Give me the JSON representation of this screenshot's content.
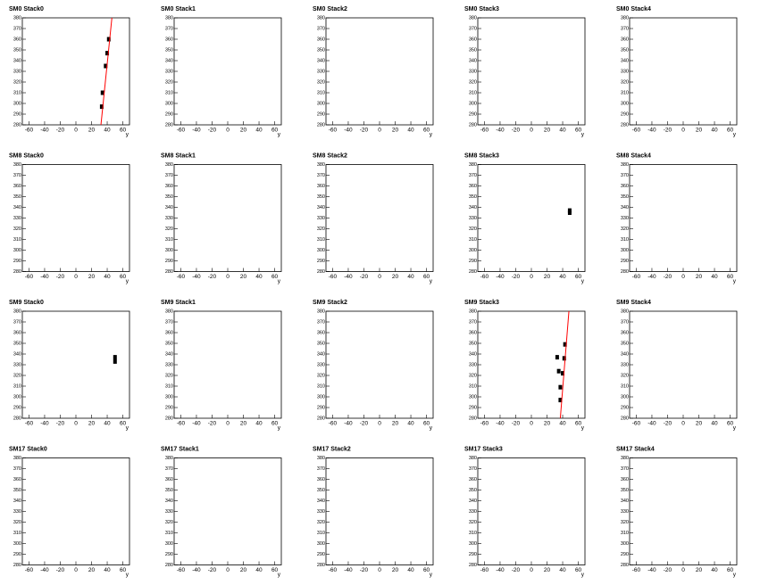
{
  "chart_data": [
    {
      "type": "scatter",
      "title": "SM0 Stack0",
      "xlabel": "y",
      "xlim": [
        -68.5,
        68.5
      ],
      "ylim": [
        280,
        380
      ],
      "xticks": [
        -60,
        -40,
        -20,
        0,
        20,
        40,
        60
      ],
      "yticks": [
        280,
        290,
        300,
        310,
        320,
        330,
        340,
        350,
        360,
        370,
        380
      ],
      "points": {
        "x": [
          33,
          34,
          38,
          40,
          42
        ],
        "y": [
          297,
          310,
          335,
          347,
          360
        ]
      },
      "fit": {
        "x": [
          32,
          46
        ],
        "y": [
          280,
          380
        ],
        "color": "#ff0000"
      }
    },
    {
      "type": "scatter",
      "title": "SM0 Stack1",
      "xlabel": "y",
      "xlim": [
        -68.5,
        68.5
      ],
      "ylim": [
        280,
        380
      ],
      "xticks": [
        -60,
        -40,
        -20,
        0,
        20,
        40,
        60
      ],
      "yticks": [
        280,
        290,
        300,
        310,
        320,
        330,
        340,
        350,
        360,
        370,
        380
      ]
    },
    {
      "type": "scatter",
      "title": "SM0 Stack2",
      "xlabel": "y",
      "xlim": [
        -68.5,
        68.5
      ],
      "ylim": [
        280,
        380
      ],
      "xticks": [
        -60,
        -40,
        -20,
        0,
        20,
        40,
        60
      ],
      "yticks": [
        280,
        290,
        300,
        310,
        320,
        330,
        340,
        350,
        360,
        370,
        380
      ]
    },
    {
      "type": "scatter",
      "title": "SM0 Stack3",
      "xlabel": "y",
      "xlim": [
        -68.5,
        68.5
      ],
      "ylim": [
        280,
        380
      ],
      "xticks": [
        -60,
        -40,
        -20,
        0,
        20,
        40,
        60
      ],
      "yticks": [
        280,
        290,
        300,
        310,
        320,
        330,
        340,
        350,
        360,
        370,
        380
      ]
    },
    {
      "type": "scatter",
      "title": "SM0 Stack4",
      "xlabel": "y",
      "xlim": [
        -68.5,
        68.5
      ],
      "ylim": [
        280,
        380
      ],
      "xticks": [
        -60,
        -40,
        -20,
        0,
        20,
        40,
        60
      ],
      "yticks": [
        280,
        290,
        300,
        310,
        320,
        330,
        340,
        350,
        360,
        370,
        380
      ]
    },
    {
      "type": "scatter",
      "title": "SM8 Stack0",
      "xlabel": "y",
      "xlim": [
        -68.5,
        68.5
      ],
      "ylim": [
        280,
        380
      ],
      "xticks": [
        -60,
        -40,
        -20,
        0,
        20,
        40,
        60
      ],
      "yticks": [
        280,
        290,
        300,
        310,
        320,
        330,
        340,
        350,
        360,
        370,
        380
      ]
    },
    {
      "type": "scatter",
      "title": "SM8 Stack1",
      "xlabel": "y",
      "xlim": [
        -68.5,
        68.5
      ],
      "ylim": [
        280,
        380
      ],
      "xticks": [
        -60,
        -40,
        -20,
        0,
        20,
        40,
        60
      ],
      "yticks": [
        280,
        290,
        300,
        310,
        320,
        330,
        340,
        350,
        360,
        370,
        380
      ]
    },
    {
      "type": "scatter",
      "title": "SM8 Stack2",
      "xlabel": "y",
      "xlim": [
        -68.5,
        68.5
      ],
      "ylim": [
        280,
        380
      ],
      "xticks": [
        -60,
        -40,
        -20,
        0,
        20,
        40,
        60
      ],
      "yticks": [
        280,
        290,
        300,
        310,
        320,
        330,
        340,
        350,
        360,
        370,
        380
      ]
    },
    {
      "type": "scatter",
      "title": "SM8 Stack3",
      "xlabel": "y",
      "xlim": [
        -68.5,
        68.5
      ],
      "ylim": [
        280,
        380
      ],
      "xticks": [
        -60,
        -40,
        -20,
        0,
        20,
        40,
        60
      ],
      "yticks": [
        280,
        290,
        300,
        310,
        320,
        330,
        340,
        350,
        360,
        370,
        380
      ],
      "points": {
        "x": [
          49,
          49
        ],
        "y": [
          337,
          335
        ]
      }
    },
    {
      "type": "scatter",
      "title": "SM8 Stack4",
      "xlabel": "y",
      "xlim": [
        -68.5,
        68.5
      ],
      "ylim": [
        280,
        380
      ],
      "xticks": [
        -60,
        -40,
        -20,
        0,
        20,
        40,
        60
      ],
      "yticks": [
        280,
        290,
        300,
        310,
        320,
        330,
        340,
        350,
        360,
        370,
        380
      ]
    },
    {
      "type": "scatter",
      "title": "SM9 Stack0",
      "xlabel": "y",
      "xlim": [
        -68.5,
        68.5
      ],
      "ylim": [
        280,
        380
      ],
      "xticks": [
        -60,
        -40,
        -20,
        0,
        20,
        40,
        60
      ],
      "yticks": [
        280,
        290,
        300,
        310,
        320,
        330,
        340,
        350,
        360,
        370,
        380
      ],
      "points": {
        "x": [
          50,
          50
        ],
        "y": [
          337,
          333
        ]
      }
    },
    {
      "type": "scatter",
      "title": "SM9 Stack1",
      "xlabel": "y",
      "xlim": [
        -68.5,
        68.5
      ],
      "ylim": [
        280,
        380
      ],
      "xticks": [
        -60,
        -40,
        -20,
        0,
        20,
        40,
        60
      ],
      "yticks": [
        280,
        290,
        300,
        310,
        320,
        330,
        340,
        350,
        360,
        370,
        380
      ]
    },
    {
      "type": "scatter",
      "title": "SM9 Stack2",
      "xlabel": "y",
      "xlim": [
        -68.5,
        68.5
      ],
      "ylim": [
        280,
        380
      ],
      "xticks": [
        -60,
        -40,
        -20,
        0,
        20,
        40,
        60
      ],
      "yticks": [
        280,
        290,
        300,
        310,
        320,
        330,
        340,
        350,
        360,
        370,
        380
      ]
    },
    {
      "type": "scatter",
      "title": "SM9 Stack3",
      "xlabel": "y",
      "xlim": [
        -68.5,
        68.5
      ],
      "ylim": [
        280,
        380
      ],
      "xticks": [
        -60,
        -40,
        -20,
        0,
        20,
        40,
        60
      ],
      "yticks": [
        280,
        290,
        300,
        310,
        320,
        330,
        340,
        350,
        360,
        370,
        380
      ],
      "points": {
        "x": [
          33,
          42,
          35,
          40,
          37,
          43,
          37
        ],
        "y": [
          337,
          336,
          324,
          322,
          309,
          349,
          297
        ]
      },
      "fit": {
        "x": [
          37,
          48
        ],
        "y": [
          280,
          380
        ],
        "color": "#ff0000"
      }
    },
    {
      "type": "scatter",
      "title": "SM9 Stack4",
      "xlabel": "y",
      "xlim": [
        -68.5,
        68.5
      ],
      "ylim": [
        280,
        380
      ],
      "xticks": [
        -60,
        -40,
        -20,
        0,
        20,
        40,
        60
      ],
      "yticks": [
        280,
        290,
        300,
        310,
        320,
        330,
        340,
        350,
        360,
        370,
        380
      ]
    },
    {
      "type": "scatter",
      "title": "SM17 Stack0",
      "xlabel": "y",
      "xlim": [
        -68.5,
        68.5
      ],
      "ylim": [
        280,
        380
      ],
      "xticks": [
        -60,
        -40,
        -20,
        0,
        20,
        40,
        60
      ],
      "yticks": [
        280,
        290,
        300,
        310,
        320,
        330,
        340,
        350,
        360,
        370,
        380
      ]
    },
    {
      "type": "scatter",
      "title": "SM17 Stack1",
      "xlabel": "y",
      "xlim": [
        -68.5,
        68.5
      ],
      "ylim": [
        280,
        380
      ],
      "xticks": [
        -60,
        -40,
        -20,
        0,
        20,
        40,
        60
      ],
      "yticks": [
        280,
        290,
        300,
        310,
        320,
        330,
        340,
        350,
        360,
        370,
        380
      ]
    },
    {
      "type": "scatter",
      "title": "SM17 Stack2",
      "xlabel": "y",
      "xlim": [
        -68.5,
        68.5
      ],
      "ylim": [
        280,
        380
      ],
      "xticks": [
        -60,
        -40,
        -20,
        0,
        20,
        40,
        60
      ],
      "yticks": [
        280,
        290,
        300,
        310,
        320,
        330,
        340,
        350,
        360,
        370,
        380
      ]
    },
    {
      "type": "scatter",
      "title": "SM17 Stack3",
      "xlabel": "y",
      "xlim": [
        -68.5,
        68.5
      ],
      "ylim": [
        280,
        380
      ],
      "xticks": [
        -60,
        -40,
        -20,
        0,
        20,
        40,
        60
      ],
      "yticks": [
        280,
        290,
        300,
        310,
        320,
        330,
        340,
        350,
        360,
        370,
        380
      ]
    },
    {
      "type": "scatter",
      "title": "SM17 Stack4",
      "xlabel": "y",
      "xlim": [
        -68.5,
        68.5
      ],
      "ylim": [
        280,
        380
      ],
      "xticks": [
        -60,
        -40,
        -20,
        0,
        20,
        40,
        60
      ],
      "yticks": [
        280,
        290,
        300,
        310,
        320,
        330,
        340,
        350,
        360,
        370,
        380
      ]
    }
  ]
}
